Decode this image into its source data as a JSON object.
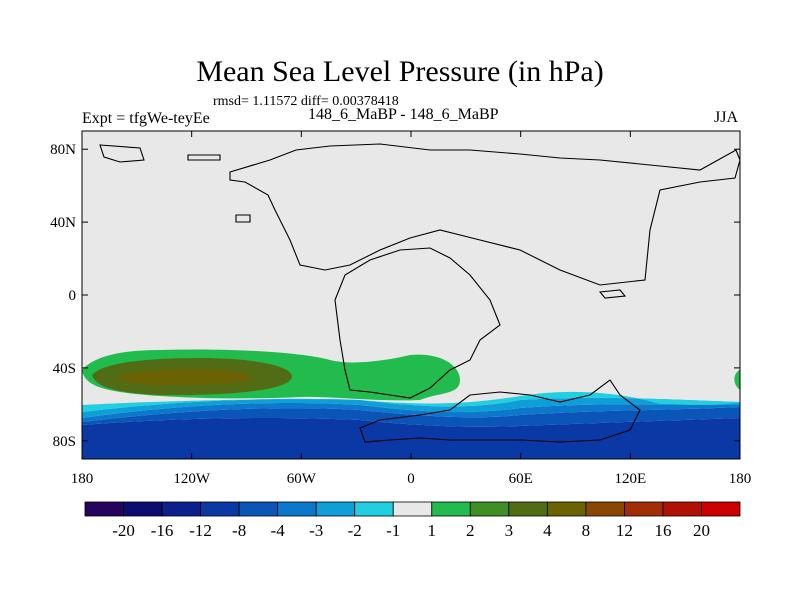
{
  "title": "Mean Sea Level Pressure (in hPa)",
  "stats": "rmsd= 1.11572 diff= 0.00378418",
  "left_label": "Expt = tfgWe-teyEe",
  "center_label": "148_6_MaBP - 148_6_MaBP",
  "right_label": "JJA",
  "map": {
    "lon_range": [
      -180,
      180
    ],
    "lat_range": [
      -90,
      90
    ],
    "lat_ticks": [
      {
        "value": 80,
        "label": "80N"
      },
      {
        "value": 40,
        "label": "40N"
      },
      {
        "value": 0,
        "label": "0"
      },
      {
        "value": -40,
        "label": "40S"
      },
      {
        "value": -80,
        "label": "80S"
      }
    ],
    "lon_ticks": [
      {
        "value": -180,
        "label": "180"
      },
      {
        "value": -120,
        "label": "120W"
      },
      {
        "value": -60,
        "label": "60W"
      },
      {
        "value": 0,
        "label": "0"
      },
      {
        "value": 60,
        "label": "60E"
      },
      {
        "value": 120,
        "label": "120E"
      },
      {
        "value": 180,
        "label": "180"
      }
    ]
  },
  "colorbar": {
    "colors": [
      "#25045d",
      "#0c0c73",
      "#0c1f8c",
      "#0a39a6",
      "#0c55b8",
      "#0c78cc",
      "#0f9fd8",
      "#22cfe1",
      "#e8e8e8",
      "#22bb4d",
      "#3f8f26",
      "#526c16",
      "#6b6204",
      "#8b4504",
      "#a22e07",
      "#b31005",
      "#cc0000"
    ],
    "labels": [
      "-20",
      "-16",
      "-12",
      "-8",
      "-4",
      "-3",
      "-2",
      "-1",
      "1",
      "2",
      "3",
      "4",
      "8",
      "12",
      "16",
      "20"
    ]
  },
  "legend_colors": {
    "neutral": "#e8e8e8",
    "green": "#22bb4d",
    "olive": "#526c16",
    "brown_core": "#6b6204",
    "cyan": "#22cfe1",
    "light_blue": "#0f9fd8",
    "mid_blue": "#0c78cc",
    "blue": "#0c55b8",
    "dark_blue": "#0a39a6"
  }
}
